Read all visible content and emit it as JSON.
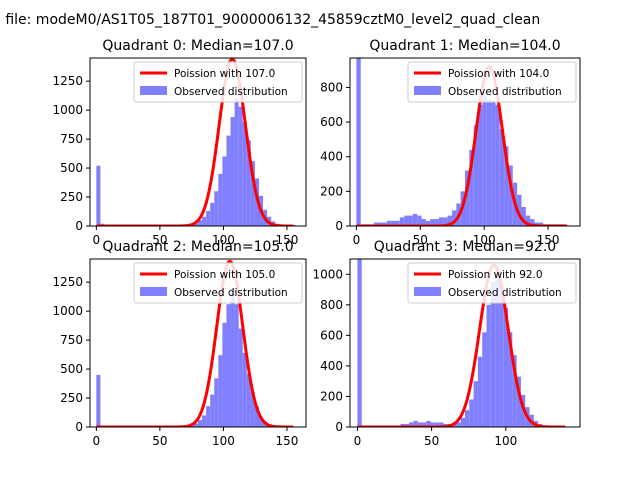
{
  "figure": {
    "suptitle": "n file: modeM0/AS1T05_187T01_9000006132_45859cztM0_level2_quad_clean",
    "legend_poisson_prefix": "Poission with ",
    "legend_observed": "Observed distribution",
    "colors": {
      "poisson": "#ff0000",
      "observed": "#8080ff"
    }
  },
  "chart_data": [
    {
      "type": "bar",
      "title": "Quadrant 0: Median=107.0",
      "poisson_label": "Poission with 107.0",
      "observed_label": "Observed distribution",
      "median": 107.0,
      "poisson_peak": 1440,
      "xlim": [
        -5,
        165
      ],
      "ylim": [
        0,
        1450
      ],
      "xticks": [
        0,
        50,
        100,
        150
      ],
      "yticks": [
        0,
        250,
        500,
        750,
        1000,
        1250
      ],
      "bin_width": 3.2,
      "bars": [
        [
          0,
          520
        ],
        [
          3.2,
          20
        ],
        [
          6.4,
          10
        ],
        [
          9.6,
          10
        ],
        [
          12.8,
          10
        ],
        [
          16,
          10
        ],
        [
          19.2,
          10
        ],
        [
          22.4,
          10
        ],
        [
          25.6,
          10
        ],
        [
          28.8,
          10
        ],
        [
          32,
          10
        ],
        [
          35.2,
          10
        ],
        [
          38.4,
          10
        ],
        [
          41.6,
          10
        ],
        [
          44.8,
          10
        ],
        [
          48,
          10
        ],
        [
          51.2,
          10
        ],
        [
          54.4,
          10
        ],
        [
          57.6,
          10
        ],
        [
          60.8,
          10
        ],
        [
          64,
          10
        ],
        [
          67.2,
          10
        ],
        [
          70.4,
          10
        ],
        [
          73.6,
          10
        ],
        [
          76.8,
          20
        ],
        [
          80,
          50
        ],
        [
          83.2,
          80
        ],
        [
          86.4,
          130
        ],
        [
          89.6,
          200
        ],
        [
          92.8,
          300
        ],
        [
          96,
          450
        ],
        [
          99.2,
          600
        ],
        [
          102.4,
          780
        ],
        [
          105.6,
          940
        ],
        [
          108.8,
          1100
        ],
        [
          112,
          1030
        ],
        [
          115.2,
          900
        ],
        [
          118.4,
          740
        ],
        [
          121.6,
          560
        ],
        [
          124.8,
          410
        ],
        [
          128,
          260
        ],
        [
          131.2,
          140
        ],
        [
          134.4,
          80
        ],
        [
          137.6,
          40
        ],
        [
          140.8,
          20
        ],
        [
          144,
          10
        ],
        [
          147.2,
          10
        ],
        [
          150.4,
          10
        ],
        [
          153.6,
          10
        ]
      ]
    },
    {
      "type": "bar",
      "title": "Quadrant 1: Median=104.0",
      "poisson_label": "Poission with 104.0",
      "observed_label": "Observed distribution",
      "median": 104.0,
      "poisson_peak": 920,
      "xlim": [
        -5,
        175
      ],
      "ylim": [
        0,
        970
      ],
      "xticks": [
        0,
        50,
        100,
        150
      ],
      "yticks": [
        0,
        200,
        400,
        600,
        800
      ],
      "bin_width": 3.4,
      "bars": [
        [
          0,
          970
        ],
        [
          3.4,
          10
        ],
        [
          6.8,
          10
        ],
        [
          10.2,
          10
        ],
        [
          13.6,
          20
        ],
        [
          17,
          20
        ],
        [
          20.4,
          20
        ],
        [
          23.8,
          30
        ],
        [
          27.2,
          30
        ],
        [
          30.6,
          30
        ],
        [
          34,
          50
        ],
        [
          37.4,
          60
        ],
        [
          40.8,
          60
        ],
        [
          44.2,
          70
        ],
        [
          47.6,
          60
        ],
        [
          51,
          40
        ],
        [
          54.4,
          30
        ],
        [
          57.8,
          40
        ],
        [
          61.2,
          40
        ],
        [
          64.6,
          50
        ],
        [
          68,
          50
        ],
        [
          71.4,
          60
        ],
        [
          74.8,
          90
        ],
        [
          78.2,
          130
        ],
        [
          81.6,
          200
        ],
        [
          85,
          320
        ],
        [
          88.4,
          440
        ],
        [
          91.8,
          580
        ],
        [
          95.2,
          700
        ],
        [
          98.6,
          770
        ],
        [
          102,
          730
        ],
        [
          105.4,
          720
        ],
        [
          108.8,
          700
        ],
        [
          112.2,
          560
        ],
        [
          115.6,
          460
        ],
        [
          119,
          350
        ],
        [
          122.4,
          250
        ],
        [
          125.8,
          180
        ],
        [
          129.2,
          110
        ],
        [
          132.6,
          60
        ],
        [
          136,
          40
        ],
        [
          139.4,
          20
        ],
        [
          142.8,
          20
        ],
        [
          146.2,
          10
        ],
        [
          149.6,
          10
        ],
        [
          153,
          10
        ],
        [
          156.4,
          10
        ],
        [
          159.8,
          10
        ]
      ]
    },
    {
      "type": "bar",
      "title": "Quadrant 2: Median=105.0",
      "poisson_label": "Poission with 105.0",
      "observed_label": "Observed distribution",
      "median": 105.0,
      "poisson_peak": 1430,
      "xlim": [
        -5,
        165
      ],
      "ylim": [
        0,
        1450
      ],
      "xticks": [
        0,
        50,
        100,
        150
      ],
      "yticks": [
        0,
        250,
        500,
        750,
        1000,
        1250
      ],
      "bin_width": 3.2,
      "bars": [
        [
          0,
          450
        ],
        [
          3.2,
          10
        ],
        [
          6.4,
          10
        ],
        [
          9.6,
          10
        ],
        [
          12.8,
          10
        ],
        [
          16,
          10
        ],
        [
          19.2,
          10
        ],
        [
          22.4,
          10
        ],
        [
          25.6,
          10
        ],
        [
          28.8,
          10
        ],
        [
          32,
          10
        ],
        [
          35.2,
          10
        ],
        [
          38.4,
          10
        ],
        [
          41.6,
          10
        ],
        [
          44.8,
          10
        ],
        [
          48,
          10
        ],
        [
          51.2,
          10
        ],
        [
          54.4,
          10
        ],
        [
          57.6,
          10
        ],
        [
          60.8,
          10
        ],
        [
          64,
          10
        ],
        [
          67.2,
          10
        ],
        [
          70.4,
          10
        ],
        [
          73.6,
          20
        ],
        [
          76.8,
          30
        ],
        [
          80,
          60
        ],
        [
          83.2,
          100
        ],
        [
          86.4,
          180
        ],
        [
          89.6,
          280
        ],
        [
          92.8,
          420
        ],
        [
          96,
          620
        ],
        [
          99.2,
          900
        ],
        [
          102.4,
          1060
        ],
        [
          105.6,
          1200
        ],
        [
          108.8,
          1060
        ],
        [
          112,
          850
        ],
        [
          115.2,
          640
        ],
        [
          118.4,
          460
        ],
        [
          121.6,
          300
        ],
        [
          124.8,
          180
        ],
        [
          128,
          90
        ],
        [
          131.2,
          50
        ],
        [
          134.4,
          20
        ],
        [
          137.6,
          10
        ],
        [
          140.8,
          10
        ],
        [
          144,
          10
        ]
      ]
    },
    {
      "type": "bar",
      "title": "Quadrant 3: Median=92.0",
      "poisson_label": "Poission with 92.0",
      "observed_label": "Observed distribution",
      "median": 92.0,
      "poisson_peak": 1060,
      "xlim": [
        -5,
        150
      ],
      "ylim": [
        0,
        1100
      ],
      "xticks": [
        0,
        50,
        100
      ],
      "yticks": [
        0,
        200,
        400,
        600,
        800,
        1000
      ],
      "bin_width": 2.9,
      "bars": [
        [
          0,
          1100
        ],
        [
          2.9,
          10
        ],
        [
          5.8,
          10
        ],
        [
          8.7,
          10
        ],
        [
          11.6,
          10
        ],
        [
          14.5,
          10
        ],
        [
          17.4,
          10
        ],
        [
          20.3,
          10
        ],
        [
          23.2,
          10
        ],
        [
          26.1,
          10
        ],
        [
          29,
          20
        ],
        [
          31.9,
          20
        ],
        [
          34.8,
          30
        ],
        [
          37.7,
          40
        ],
        [
          40.6,
          30
        ],
        [
          43.5,
          30
        ],
        [
          46.4,
          40
        ],
        [
          49.3,
          30
        ],
        [
          52.2,
          30
        ],
        [
          55.1,
          30
        ],
        [
          58,
          20
        ],
        [
          60.9,
          20
        ],
        [
          63.8,
          20
        ],
        [
          66.7,
          30
        ],
        [
          69.6,
          60
        ],
        [
          72.5,
          110
        ],
        [
          75.4,
          180
        ],
        [
          78.3,
          300
        ],
        [
          81.2,
          460
        ],
        [
          84.1,
          620
        ],
        [
          87,
          800
        ],
        [
          89.9,
          950
        ],
        [
          92.8,
          1020
        ],
        [
          95.7,
          930
        ],
        [
          98.6,
          780
        ],
        [
          101.5,
          620
        ],
        [
          104.4,
          470
        ],
        [
          107.3,
          330
        ],
        [
          110.2,
          210
        ],
        [
          113.1,
          130
        ],
        [
          116,
          80
        ],
        [
          118.9,
          40
        ],
        [
          121.8,
          20
        ],
        [
          124.7,
          10
        ],
        [
          127.6,
          10
        ],
        [
          130.5,
          10
        ]
      ]
    }
  ]
}
